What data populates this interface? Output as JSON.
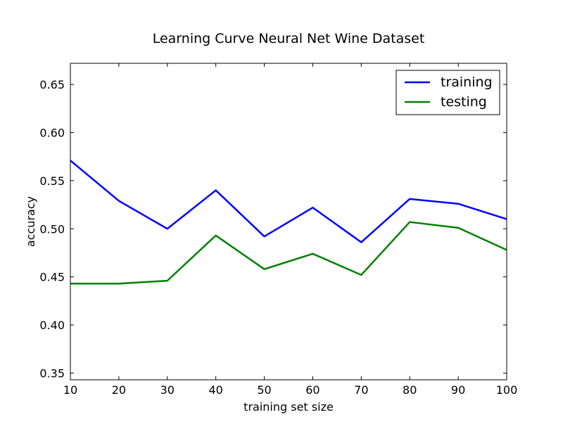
{
  "chart_data": {
    "type": "line",
    "title": "Learning Curve Neural Net Wine Dataset",
    "xlabel": "training set size",
    "ylabel": "accuracy",
    "xlim": [
      10,
      100
    ],
    "ylim": [
      0.343,
      0.672
    ],
    "xticks": [
      10,
      20,
      30,
      40,
      50,
      60,
      70,
      80,
      90,
      100
    ],
    "yticks": [
      0.35,
      0.4,
      0.45,
      0.5,
      0.55,
      0.6,
      0.65
    ],
    "xtick_labels": [
      "10",
      "20",
      "30",
      "40",
      "50",
      "60",
      "70",
      "80",
      "90",
      "100"
    ],
    "ytick_labels": [
      "0.35",
      "0.40",
      "0.45",
      "0.50",
      "0.55",
      "0.60",
      "0.65"
    ],
    "grid": false,
    "legend_position": "top-right",
    "x": [
      10,
      20,
      30,
      40,
      50,
      60,
      70,
      80,
      90,
      100
    ],
    "series": [
      {
        "name": "training",
        "color": "#0000ff",
        "values": [
          0.571,
          0.529,
          0.5,
          0.54,
          0.492,
          0.522,
          0.486,
          0.531,
          0.526,
          0.51
        ]
      },
      {
        "name": "testing",
        "color": "#008000",
        "values": [
          0.443,
          0.443,
          0.446,
          0.493,
          0.458,
          0.474,
          0.452,
          0.507,
          0.501,
          0.478
        ]
      }
    ]
  }
}
